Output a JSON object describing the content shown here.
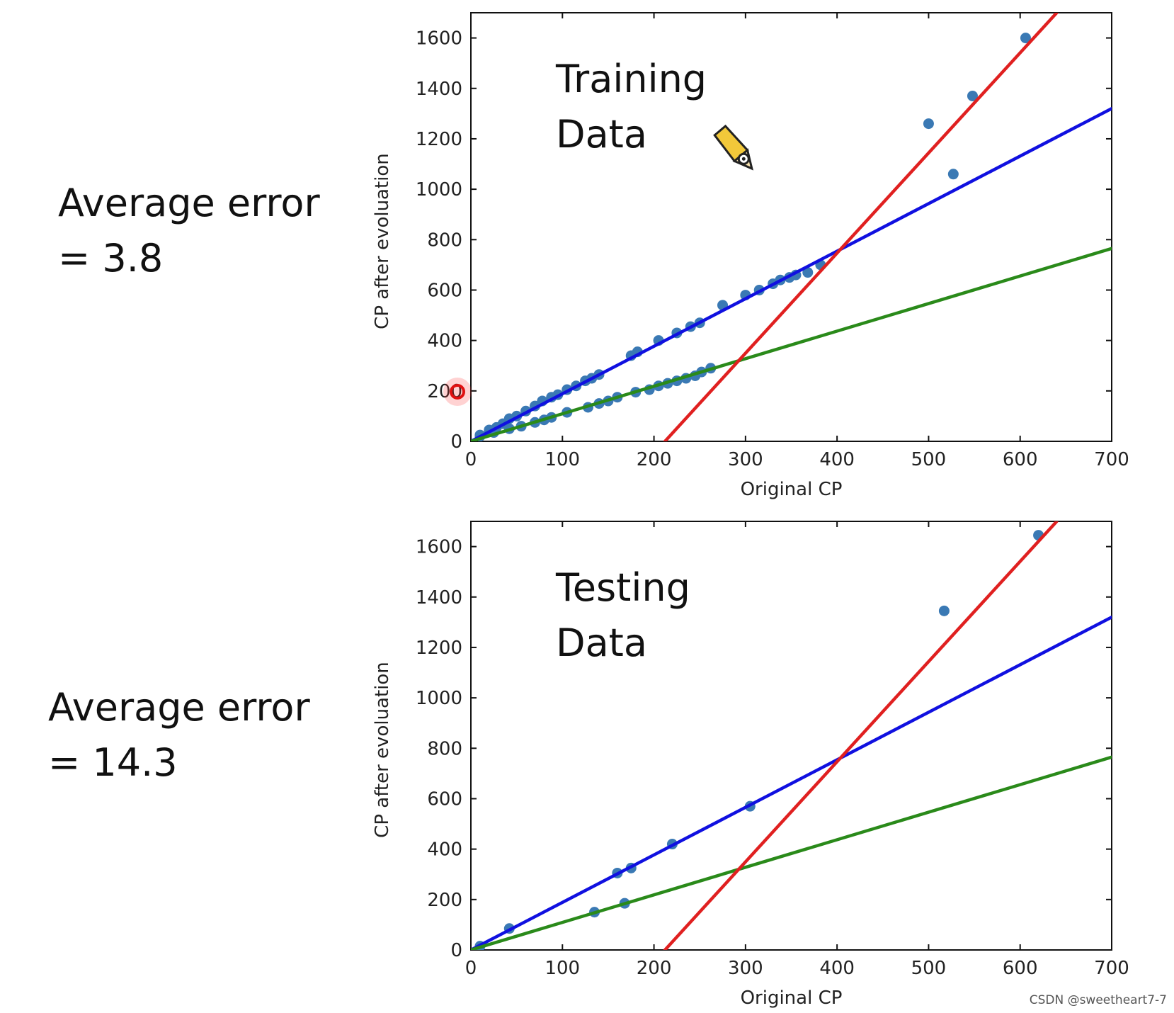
{
  "training_error": {
    "line1": "Average error",
    "line2": "= 3.8"
  },
  "testing_error": {
    "line1": "Average error",
    "line2": "= 14.3"
  },
  "watermark": "CSDN @sweetheart7-7",
  "chart_data": [
    {
      "type": "scatter",
      "title": "Training Data",
      "title_lines": [
        "Training",
        "Data"
      ],
      "xlabel": "Original CP",
      "ylabel": "CP after evoluation",
      "xlim": [
        0,
        700
      ],
      "ylim": [
        0,
        1700
      ],
      "xticks": [
        0,
        100,
        200,
        300,
        400,
        500,
        600,
        700
      ],
      "yticks": [
        0,
        200,
        400,
        600,
        800,
        1000,
        1200,
        1400,
        1600
      ],
      "grid": false,
      "colors": {
        "points": "#3a79b4",
        "blue_line": "#1010e0",
        "green_line": "#2a8a1a",
        "red_line": "#e02020"
      },
      "points": [
        [
          10,
          25
        ],
        [
          20,
          45
        ],
        [
          28,
          55
        ],
        [
          35,
          70
        ],
        [
          42,
          90
        ],
        [
          50,
          100
        ],
        [
          60,
          120
        ],
        [
          70,
          140
        ],
        [
          78,
          160
        ],
        [
          88,
          175
        ],
        [
          95,
          185
        ],
        [
          105,
          205
        ],
        [
          115,
          220
        ],
        [
          125,
          240
        ],
        [
          132,
          250
        ],
        [
          140,
          265
        ],
        [
          175,
          340
        ],
        [
          182,
          355
        ],
        [
          205,
          400
        ],
        [
          225,
          430
        ],
        [
          240,
          455
        ],
        [
          250,
          470
        ],
        [
          275,
          540
        ],
        [
          300,
          580
        ],
        [
          315,
          600
        ],
        [
          330,
          625
        ],
        [
          338,
          640
        ],
        [
          348,
          650
        ],
        [
          355,
          660
        ],
        [
          368,
          670
        ],
        [
          382,
          700
        ],
        [
          10,
          20
        ],
        [
          25,
          35
        ],
        [
          42,
          50
        ],
        [
          55,
          60
        ],
        [
          70,
          75
        ],
        [
          80,
          85
        ],
        [
          88,
          95
        ],
        [
          105,
          115
        ],
        [
          128,
          135
        ],
        [
          140,
          150
        ],
        [
          150,
          160
        ],
        [
          160,
          175
        ],
        [
          180,
          195
        ],
        [
          195,
          205
        ],
        [
          205,
          220
        ],
        [
          215,
          230
        ],
        [
          225,
          240
        ],
        [
          235,
          250
        ],
        [
          245,
          260
        ],
        [
          252,
          275
        ],
        [
          262,
          290
        ],
        [
          500,
          1260
        ],
        [
          527,
          1060
        ],
        [
          548,
          1370
        ],
        [
          606,
          1600
        ]
      ],
      "lines": [
        {
          "name": "blue",
          "x": [
            0,
            700
          ],
          "y": [
            0,
            1320
          ]
        },
        {
          "name": "green",
          "x": [
            0,
            700
          ],
          "y": [
            0,
            765
          ]
        },
        {
          "name": "red",
          "x": [
            212,
            640
          ],
          "y": [
            0,
            1700
          ]
        }
      ]
    },
    {
      "type": "scatter",
      "title": "Testing Data",
      "title_lines": [
        "Testing",
        "Data"
      ],
      "xlabel": "Original CP",
      "ylabel": "CP after evoluation",
      "xlim": [
        0,
        700
      ],
      "ylim": [
        0,
        1700
      ],
      "xticks": [
        0,
        100,
        200,
        300,
        400,
        500,
        600,
        700
      ],
      "yticks": [
        0,
        200,
        400,
        600,
        800,
        1000,
        1200,
        1400,
        1600
      ],
      "grid": false,
      "colors": {
        "points": "#3a79b4",
        "blue_line": "#1010e0",
        "green_line": "#2a8a1a",
        "red_line": "#e02020"
      },
      "points": [
        [
          10,
          15
        ],
        [
          42,
          85
        ],
        [
          135,
          150
        ],
        [
          160,
          305
        ],
        [
          168,
          185
        ],
        [
          175,
          325
        ],
        [
          220,
          420
        ],
        [
          305,
          570
        ],
        [
          517,
          1345
        ],
        [
          620,
          1645
        ]
      ],
      "lines": [
        {
          "name": "blue",
          "x": [
            0,
            700
          ],
          "y": [
            0,
            1320
          ]
        },
        {
          "name": "green",
          "x": [
            0,
            700
          ],
          "y": [
            0,
            765
          ]
        },
        {
          "name": "red",
          "x": [
            212,
            640
          ],
          "y": [
            0,
            1700
          ]
        }
      ]
    }
  ]
}
